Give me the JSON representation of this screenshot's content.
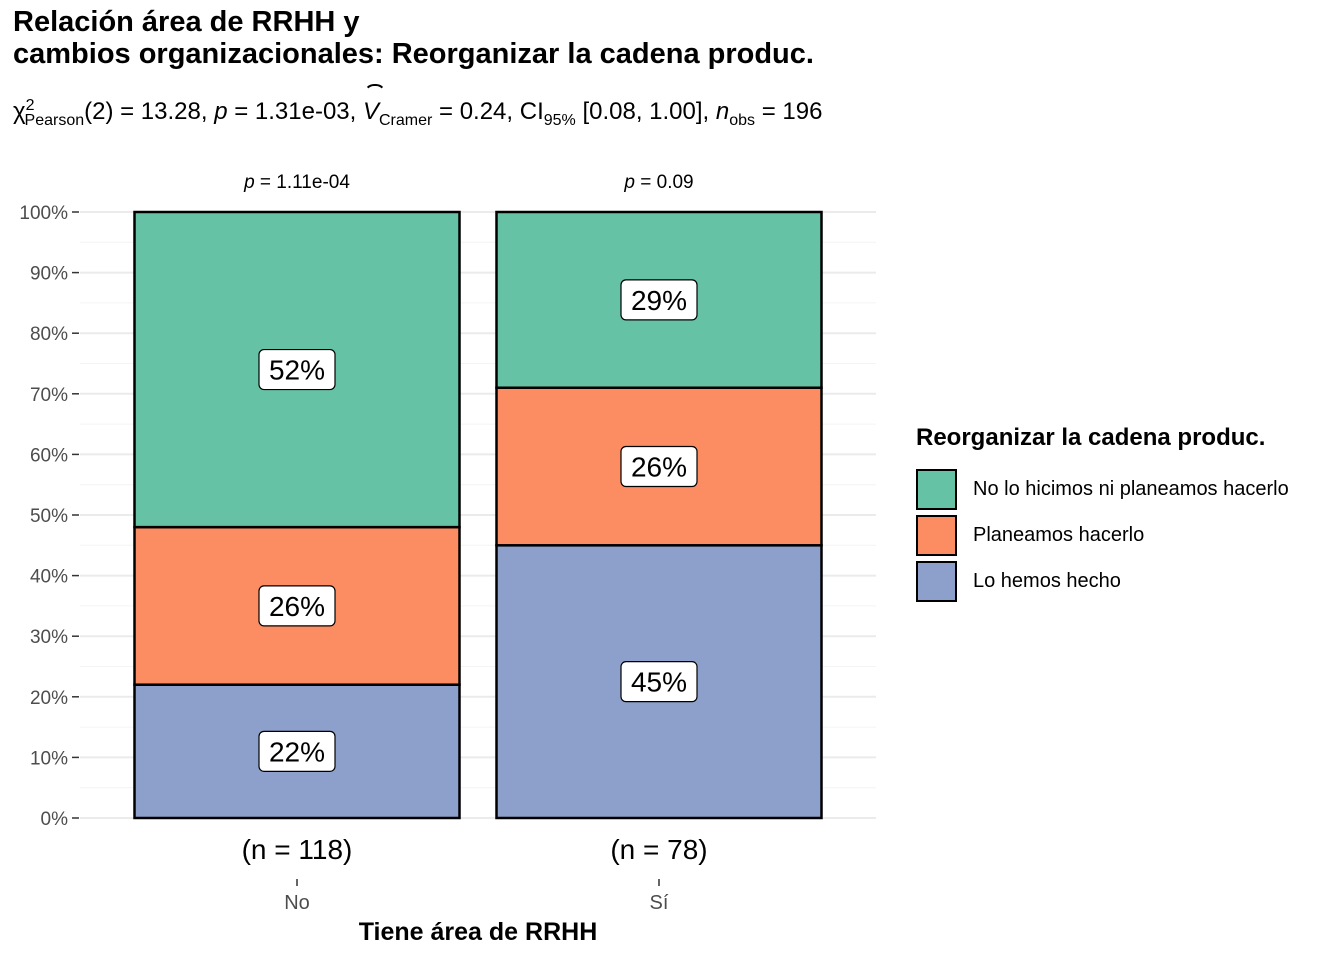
{
  "chart_data": {
    "type": "bar",
    "stacked": true,
    "title_lines": [
      "Relación área de RRHH y",
      "cambios organizacionales: Reorganizar la cadena produc."
    ],
    "subtitle": {
      "chi_symbol": "χ",
      "chi_sup": "2",
      "chi_sub": "Pearson",
      "df": "(2) = 13.28, ",
      "p_var": "p",
      "p_text": " = 1.31e-03, ",
      "v_var": "V",
      "v_sub": "Cramer",
      "v_text": " = 0.24, CI",
      "ci_sub": "95%",
      "ci_text": " [0.08, 1.00], ",
      "n_var": "n",
      "n_sub": "obs",
      "n_text": " = 196"
    },
    "xlabel": "Tiene área de RRHH",
    "ylabel": "",
    "ylim": [
      0,
      100
    ],
    "y_ticks": [
      "0%",
      "10%",
      "20%",
      "30%",
      "40%",
      "50%",
      "60%",
      "70%",
      "80%",
      "90%",
      "100%"
    ],
    "categories": [
      "No",
      "Sí"
    ],
    "n_labels": [
      "(n = 118)",
      "(n = 78)"
    ],
    "p_labels": [
      {
        "var": "p",
        "text": " = 1.11e-04"
      },
      {
        "var": "p",
        "text": " = 0.09"
      }
    ],
    "legend_title": "Reorganizar la cadena produc.",
    "legend_position": "right",
    "series": [
      {
        "name": "Lo hemos hecho",
        "color": "#8DA0CB",
        "values": [
          22,
          45
        ],
        "labels": [
          "22%",
          "45%"
        ]
      },
      {
        "name": "Planeamos hacerlo",
        "color": "#FC8D62",
        "values": [
          26,
          26
        ],
        "labels": [
          "26%",
          "26%"
        ]
      },
      {
        "name": "No lo hicimos ni planeamos hacerlo",
        "color": "#66C2A5",
        "values": [
          52,
          29
        ],
        "labels": [
          "52%",
          "29%"
        ]
      }
    ],
    "legend_order": [
      2,
      1,
      0
    ]
  }
}
